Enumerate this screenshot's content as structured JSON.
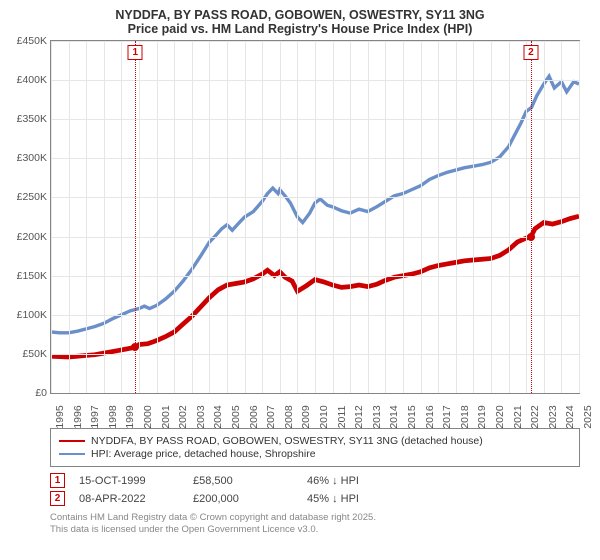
{
  "title": {
    "line1": "NYDDFA, BY PASS ROAD, GOBOWEN, OSWESTRY, SY11 3NG",
    "line2": "Price paid vs. HM Land Registry's House Price Index (HPI)",
    "fontsize": 12.5,
    "color": "#333333"
  },
  "chart": {
    "type": "line",
    "background_color": "#ffffff",
    "border_color": "#848484",
    "grid_color": "#e6e6e6",
    "ylim": [
      0,
      450000
    ],
    "ytick_step": 50000,
    "yticks": [
      "£0",
      "£50K",
      "£100K",
      "£150K",
      "£200K",
      "£250K",
      "£300K",
      "£350K",
      "£400K",
      "£450K"
    ],
    "xlim": [
      1995,
      2025
    ],
    "xticks": [
      1995,
      1996,
      1997,
      1998,
      1999,
      2000,
      2001,
      2002,
      2003,
      2004,
      2005,
      2006,
      2007,
      2008,
      2009,
      2010,
      2011,
      2012,
      2013,
      2014,
      2015,
      2016,
      2017,
      2018,
      2019,
      2020,
      2021,
      2022,
      2023,
      2024,
      2025
    ],
    "label_fontsize": 10.5,
    "label_color": "#555555"
  },
  "series": {
    "price_paid": {
      "label": "NYDDFA, BY PASS ROAD, GOBOWEN, OSWESTRY, SY11 3NG (detached house)",
      "color": "#cc0000",
      "line_width": 2.5,
      "data": [
        [
          1995,
          47000
        ],
        [
          1995.5,
          46500
        ],
        [
          1996,
          46000
        ],
        [
          1996.5,
          47000
        ],
        [
          1997,
          48000
        ],
        [
          1997.5,
          49000
        ],
        [
          1998,
          51000
        ],
        [
          1998.5,
          53000
        ],
        [
          1999,
          55000
        ],
        [
          1999.79,
          58500
        ],
        [
          2000,
          62000
        ],
        [
          2000.5,
          63000
        ],
        [
          2001,
          67000
        ],
        [
          2001.5,
          72000
        ],
        [
          2002,
          78000
        ],
        [
          2002.5,
          88000
        ],
        [
          2003,
          98000
        ],
        [
          2003.5,
          110000
        ],
        [
          2004,
          122000
        ],
        [
          2004.5,
          132000
        ],
        [
          2005,
          138000
        ],
        [
          2005.5,
          140000
        ],
        [
          2006,
          142000
        ],
        [
          2006.5,
          146000
        ],
        [
          2007,
          152000
        ],
        [
          2007.3,
          157000
        ],
        [
          2007.7,
          150000
        ],
        [
          2008,
          155000
        ],
        [
          2008.3,
          148000
        ],
        [
          2008.7,
          143000
        ],
        [
          2009,
          130000
        ],
        [
          2009.5,
          137000
        ],
        [
          2010,
          145000
        ],
        [
          2010.5,
          142000
        ],
        [
          2011,
          138000
        ],
        [
          2011.5,
          135000
        ],
        [
          2012,
          136000
        ],
        [
          2012.5,
          138000
        ],
        [
          2013,
          136000
        ],
        [
          2013.5,
          139000
        ],
        [
          2014,
          144000
        ],
        [
          2014.5,
          148000
        ],
        [
          2015,
          150000
        ],
        [
          2015.5,
          152000
        ],
        [
          2016,
          155000
        ],
        [
          2016.5,
          160000
        ],
        [
          2017,
          163000
        ],
        [
          2017.5,
          165000
        ],
        [
          2018,
          167000
        ],
        [
          2018.5,
          169000
        ],
        [
          2019,
          170000
        ],
        [
          2019.5,
          171000
        ],
        [
          2020,
          172000
        ],
        [
          2020.5,
          176000
        ],
        [
          2021,
          183000
        ],
        [
          2021.5,
          193000
        ],
        [
          2022,
          198000
        ],
        [
          2022.27,
          200000
        ],
        [
          2022.5,
          210000
        ],
        [
          2023,
          218000
        ],
        [
          2023.5,
          216000
        ],
        [
          2024,
          219000
        ],
        [
          2024.5,
          223000
        ],
        [
          2025,
          226000
        ]
      ]
    },
    "hpi": {
      "label": "HPI: Average price, detached house, Shropshire",
      "color": "#6b8fc9",
      "line_width": 1.8,
      "data": [
        [
          1995,
          78000
        ],
        [
          1995.5,
          77000
        ],
        [
          1996,
          77000
        ],
        [
          1996.5,
          79000
        ],
        [
          1997,
          82000
        ],
        [
          1997.5,
          85000
        ],
        [
          1998,
          89000
        ],
        [
          1998.5,
          95000
        ],
        [
          1999,
          100000
        ],
        [
          1999.5,
          105000
        ],
        [
          2000,
          108000
        ],
        [
          2000.3,
          111000
        ],
        [
          2000.6,
          108000
        ],
        [
          2001,
          112000
        ],
        [
          2001.5,
          120000
        ],
        [
          2002,
          130000
        ],
        [
          2002.5,
          143000
        ],
        [
          2003,
          158000
        ],
        [
          2003.5,
          175000
        ],
        [
          2004,
          193000
        ],
        [
          2004.3,
          200000
        ],
        [
          2004.7,
          210000
        ],
        [
          2005,
          215000
        ],
        [
          2005.3,
          208000
        ],
        [
          2005.7,
          218000
        ],
        [
          2006,
          225000
        ],
        [
          2006.5,
          232000
        ],
        [
          2007,
          245000
        ],
        [
          2007.3,
          255000
        ],
        [
          2007.6,
          262000
        ],
        [
          2007.9,
          255000
        ],
        [
          2008,
          260000
        ],
        [
          2008.3,
          252000
        ],
        [
          2008.6,
          243000
        ],
        [
          2009,
          225000
        ],
        [
          2009.3,
          218000
        ],
        [
          2009.7,
          230000
        ],
        [
          2010,
          243000
        ],
        [
          2010.3,
          248000
        ],
        [
          2010.7,
          240000
        ],
        [
          2011,
          238000
        ],
        [
          2011.5,
          233000
        ],
        [
          2012,
          230000
        ],
        [
          2012.5,
          235000
        ],
        [
          2013,
          232000
        ],
        [
          2013.5,
          238000
        ],
        [
          2014,
          245000
        ],
        [
          2014.5,
          252000
        ],
        [
          2015,
          255000
        ],
        [
          2015.5,
          260000
        ],
        [
          2016,
          265000
        ],
        [
          2016.5,
          273000
        ],
        [
          2017,
          278000
        ],
        [
          2017.5,
          282000
        ],
        [
          2018,
          285000
        ],
        [
          2018.5,
          288000
        ],
        [
          2019,
          290000
        ],
        [
          2019.5,
          292000
        ],
        [
          2020,
          295000
        ],
        [
          2020.5,
          302000
        ],
        [
          2021,
          315000
        ],
        [
          2021.3,
          328000
        ],
        [
          2021.7,
          345000
        ],
        [
          2022,
          360000
        ],
        [
          2022.3,
          365000
        ],
        [
          2022.6,
          380000
        ],
        [
          2023,
          395000
        ],
        [
          2023.3,
          405000
        ],
        [
          2023.6,
          390000
        ],
        [
          2024,
          398000
        ],
        [
          2024.3,
          385000
        ],
        [
          2024.7,
          398000
        ],
        [
          2025,
          395000
        ]
      ]
    }
  },
  "markers": [
    {
      "n": "1",
      "year": 1999.79,
      "value": 58500,
      "color": "#cc0000"
    },
    {
      "n": "2",
      "year": 2022.27,
      "value": 200000,
      "color": "#cc0000"
    }
  ],
  "legend": {
    "border_color": "#848484",
    "fontsize": 10.5
  },
  "detail_rows": [
    {
      "n": "1",
      "date": "15-OCT-1999",
      "price": "£58,500",
      "delta": "46% ↓ HPI",
      "color": "#cc0000"
    },
    {
      "n": "2",
      "date": "08-APR-2022",
      "price": "£200,000",
      "delta": "45% ↓ HPI",
      "color": "#cc0000"
    }
  ],
  "footer": {
    "line1": "Contains HM Land Registry data © Crown copyright and database right 2025.",
    "line2": "This data is licensed under the Open Government Licence v3.0.",
    "fontsize": 9.5,
    "color": "#888888"
  }
}
